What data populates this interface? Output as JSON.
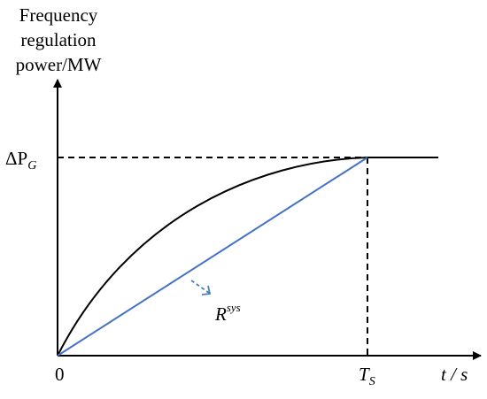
{
  "y_axis_label": [
    "Frequency",
    "regulation",
    "power/MW"
  ],
  "x_axis_label": "t / s",
  "origin_label": "0",
  "level_label": {
    "base": "ΔP",
    "sub": "G"
  },
  "time_label": {
    "base": "T",
    "sub": "S"
  },
  "line_label": {
    "base": "R",
    "sup": "sys"
  }
}
